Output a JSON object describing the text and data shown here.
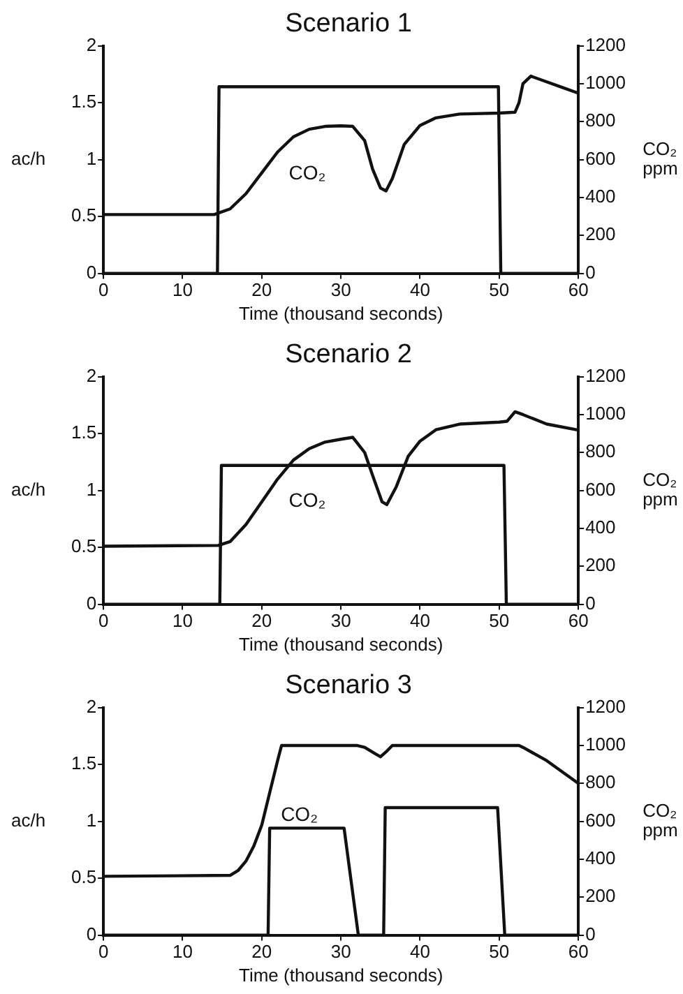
{
  "chart_data": [
    {
      "type": "line",
      "title": "Scenario 1",
      "xlabel": "Time (thousand seconds)",
      "ylabel": "ac/h",
      "y2label": "CO₂ ppm",
      "xlim": [
        0,
        60
      ],
      "xticks": [
        0,
        10,
        20,
        30,
        40,
        50,
        60
      ],
      "ylim": [
        0,
        2
      ],
      "yticks": [
        0,
        0.5,
        1,
        1.5,
        2
      ],
      "y2lim": [
        0,
        1200
      ],
      "y2ticks": [
        0,
        200,
        400,
        600,
        800,
        1000,
        1200
      ],
      "grid": false,
      "legend": false,
      "marker": "none",
      "series": [
        {
          "color": "#111111",
          "x": [
            0,
            14.4,
            14.6,
            49.9,
            50.2,
            60
          ],
          "values": [
            0,
            0,
            1.64,
            1.64,
            0,
            0
          ]
        },
        {
          "name": "CO₂",
          "color": "#111111",
          "axis": "y2",
          "x": [
            0,
            14,
            16,
            18,
            20,
            22,
            24,
            26,
            28,
            30,
            31.5,
            33,
            34,
            35,
            35.7,
            36.5,
            38,
            40,
            42,
            45,
            50,
            52,
            52.5,
            53,
            54,
            56,
            58,
            60
          ],
          "values": [
            310,
            310,
            340,
            420,
            530,
            640,
            720,
            760,
            775,
            778,
            775,
            700,
            550,
            450,
            435,
            500,
            680,
            780,
            820,
            840,
            845,
            850,
            900,
            1000,
            1040,
            1010,
            980,
            950
          ]
        }
      ]
    },
    {
      "type": "line",
      "title": "Scenario 2",
      "xlabel": "Time (thousand seconds)",
      "ylabel": "ac/h",
      "y2label": "CO₂ ppm",
      "xlim": [
        0,
        60
      ],
      "xticks": [
        0,
        10,
        20,
        30,
        40,
        50,
        60
      ],
      "ylim": [
        0,
        2
      ],
      "yticks": [
        0,
        0.5,
        1,
        1.5,
        2
      ],
      "y2lim": [
        0,
        1200
      ],
      "y2ticks": [
        0,
        200,
        400,
        600,
        800,
        1000,
        1200
      ],
      "grid": false,
      "legend": false,
      "marker": "none",
      "series": [
        {
          "color": "#111111",
          "x": [
            0,
            14.7,
            14.9,
            50.6,
            50.9,
            60
          ],
          "values": [
            0,
            0,
            1.22,
            1.22,
            0,
            0
          ]
        },
        {
          "name": "CO₂",
          "color": "#111111",
          "axis": "y2",
          "x": [
            0,
            14.5,
            16,
            18,
            20,
            22,
            24,
            26,
            28,
            30,
            31.5,
            33,
            34,
            35.2,
            35.8,
            37,
            38.5,
            40,
            42,
            45,
            50,
            51,
            52,
            53,
            56,
            60
          ],
          "values": [
            306,
            310,
            330,
            420,
            540,
            660,
            760,
            820,
            855,
            870,
            880,
            800,
            680,
            540,
            525,
            620,
            780,
            860,
            920,
            950,
            960,
            965,
            1015,
            1000,
            950,
            918
          ]
        }
      ]
    },
    {
      "type": "line",
      "title": "Scenario 3",
      "xlabel": "Time (thousand seconds)",
      "ylabel": "ac/h",
      "y2label": "CO₂ ppm",
      "xlim": [
        0,
        60
      ],
      "xticks": [
        0,
        10,
        20,
        30,
        40,
        50,
        60
      ],
      "ylim": [
        0,
        2
      ],
      "yticks": [
        0,
        0.5,
        1,
        1.5,
        2
      ],
      "y2lim": [
        0,
        1200
      ],
      "y2ticks": [
        0,
        200,
        400,
        600,
        800,
        1000,
        1200
      ],
      "grid": false,
      "legend": false,
      "marker": "none",
      "series": [
        {
          "color": "#111111",
          "x": [
            0,
            20.8,
            21,
            30.4,
            32.2,
            35.4,
            35.6,
            49.8,
            50.7,
            60
          ],
          "values": [
            0,
            0,
            0.94,
            0.94,
            0,
            0,
            1.12,
            1.12,
            0,
            0
          ]
        },
        {
          "name": "CO₂",
          "color": "#111111",
          "axis": "y2",
          "x": [
            0,
            16,
            17,
            18,
            19,
            20,
            21,
            22,
            22.5,
            32,
            33,
            34.2,
            35,
            35.8,
            36.5,
            51,
            52.5,
            53,
            56,
            60
          ],
          "values": [
            310,
            315,
            340,
            390,
            470,
            580,
            750,
            920,
            1000,
            1000,
            990,
            960,
            940,
            970,
            1000,
            1000,
            1000,
            990,
            920,
            800
          ]
        }
      ]
    }
  ]
}
